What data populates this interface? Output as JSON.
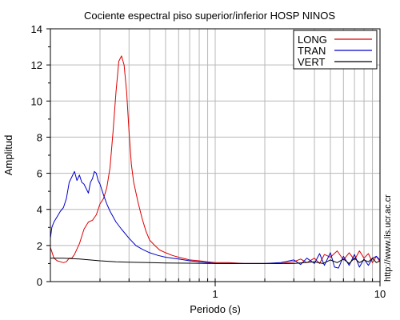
{
  "chart_data": {
    "type": "line",
    "title": "Cociente espectral piso superior/inferior  HOSP NINOS",
    "xlabel": "Periodo (s)",
    "ylabel": "Amplitud",
    "x_scale": "log",
    "xlim": [
      0.1,
      10
    ],
    "ylim": [
      0,
      14
    ],
    "x_tick_labels": [
      "1",
      "10"
    ],
    "x_tick_values": [
      1,
      10
    ],
    "y_ticks": [
      0,
      2,
      4,
      6,
      8,
      10,
      12,
      14
    ],
    "grid": true,
    "legend_position": "top-right",
    "credit": "http://www.lis.ucr.ac.cr",
    "series": [
      {
        "name": "LONG",
        "color": "#dd0000",
        "points": [
          [
            0.1,
            1.9
          ],
          [
            0.105,
            1.3
          ],
          [
            0.11,
            1.15
          ],
          [
            0.115,
            1.1
          ],
          [
            0.12,
            1.05
          ],
          [
            0.125,
            1.1
          ],
          [
            0.13,
            1.3
          ],
          [
            0.135,
            1.3
          ],
          [
            0.14,
            1.5
          ],
          [
            0.15,
            2.1
          ],
          [
            0.16,
            2.9
          ],
          [
            0.17,
            3.3
          ],
          [
            0.18,
            3.4
          ],
          [
            0.19,
            3.7
          ],
          [
            0.2,
            4.3
          ],
          [
            0.21,
            4.6
          ],
          [
            0.22,
            5.2
          ],
          [
            0.23,
            6.3
          ],
          [
            0.24,
            8.3
          ],
          [
            0.25,
            10.5
          ],
          [
            0.26,
            12.2
          ],
          [
            0.27,
            12.5
          ],
          [
            0.28,
            12.0
          ],
          [
            0.29,
            10.5
          ],
          [
            0.3,
            8.3
          ],
          [
            0.31,
            6.5
          ],
          [
            0.32,
            5.5
          ],
          [
            0.34,
            4.4
          ],
          [
            0.36,
            3.5
          ],
          [
            0.38,
            2.8
          ],
          [
            0.4,
            2.3
          ],
          [
            0.43,
            2.0
          ],
          [
            0.46,
            1.75
          ],
          [
            0.5,
            1.6
          ],
          [
            0.55,
            1.45
          ],
          [
            0.6,
            1.35
          ],
          [
            0.7,
            1.2
          ],
          [
            0.8,
            1.15
          ],
          [
            0.9,
            1.1
          ],
          [
            1.0,
            1.05
          ],
          [
            1.2,
            1.05
          ],
          [
            1.5,
            1.0
          ],
          [
            2.0,
            1.0
          ],
          [
            2.5,
            1.0
          ],
          [
            3.0,
            1.1
          ],
          [
            3.3,
            1.25
          ],
          [
            3.6,
            1.05
          ],
          [
            4.0,
            1.3
          ],
          [
            4.3,
            1.0
          ],
          [
            4.6,
            1.5
          ],
          [
            5.0,
            1.35
          ],
          [
            5.5,
            1.7
          ],
          [
            6.0,
            1.2
          ],
          [
            6.5,
            1.6
          ],
          [
            7.0,
            1.2
          ],
          [
            7.5,
            1.7
          ],
          [
            8.0,
            1.3
          ],
          [
            8.5,
            1.55
          ],
          [
            9.0,
            1.05
          ],
          [
            9.5,
            1.4
          ],
          [
            10.0,
            1.1
          ]
        ]
      },
      {
        "name": "TRAN",
        "color": "#0000cc",
        "points": [
          [
            0.1,
            2.4
          ],
          [
            0.102,
            3.0
          ],
          [
            0.105,
            3.3
          ],
          [
            0.11,
            3.6
          ],
          [
            0.115,
            3.9
          ],
          [
            0.12,
            4.1
          ],
          [
            0.125,
            4.6
          ],
          [
            0.13,
            5.5
          ],
          [
            0.135,
            5.8
          ],
          [
            0.14,
            6.1
          ],
          [
            0.145,
            5.6
          ],
          [
            0.15,
            5.9
          ],
          [
            0.155,
            5.5
          ],
          [
            0.16,
            5.4
          ],
          [
            0.17,
            4.9
          ],
          [
            0.175,
            5.5
          ],
          [
            0.18,
            5.7
          ],
          [
            0.185,
            6.1
          ],
          [
            0.19,
            6.0
          ],
          [
            0.195,
            5.6
          ],
          [
            0.2,
            5.4
          ],
          [
            0.21,
            4.8
          ],
          [
            0.22,
            4.3
          ],
          [
            0.23,
            3.9
          ],
          [
            0.25,
            3.3
          ],
          [
            0.27,
            2.9
          ],
          [
            0.3,
            2.4
          ],
          [
            0.33,
            2.0
          ],
          [
            0.36,
            1.8
          ],
          [
            0.4,
            1.6
          ],
          [
            0.45,
            1.45
          ],
          [
            0.5,
            1.35
          ],
          [
            0.55,
            1.3
          ],
          [
            0.6,
            1.25
          ],
          [
            0.7,
            1.15
          ],
          [
            0.8,
            1.1
          ],
          [
            0.9,
            1.05
          ],
          [
            1.0,
            1.0
          ],
          [
            1.5,
            1.0
          ],
          [
            2.0,
            1.0
          ],
          [
            2.5,
            1.05
          ],
          [
            3.0,
            1.2
          ],
          [
            3.3,
            0.95
          ],
          [
            3.6,
            1.3
          ],
          [
            4.0,
            1.0
          ],
          [
            4.3,
            1.55
          ],
          [
            4.6,
            0.9
          ],
          [
            5.0,
            1.6
          ],
          [
            5.3,
            0.8
          ],
          [
            5.6,
            0.75
          ],
          [
            6.0,
            1.4
          ],
          [
            6.5,
            0.9
          ],
          [
            7.0,
            1.5
          ],
          [
            7.5,
            0.8
          ],
          [
            8.0,
            1.25
          ],
          [
            8.5,
            0.9
          ],
          [
            9.0,
            1.3
          ],
          [
            9.5,
            1.4
          ],
          [
            10.0,
            1.2
          ]
        ]
      },
      {
        "name": "VERT",
        "color": "#000000",
        "points": [
          [
            0.1,
            1.3
          ],
          [
            0.12,
            1.3
          ],
          [
            0.15,
            1.25
          ],
          [
            0.2,
            1.15
          ],
          [
            0.25,
            1.1
          ],
          [
            0.3,
            1.07
          ],
          [
            0.4,
            1.05
          ],
          [
            0.5,
            1.03
          ],
          [
            0.7,
            1.02
          ],
          [
            1.0,
            1.0
          ],
          [
            1.5,
            1.0
          ],
          [
            2.0,
            1.0
          ],
          [
            2.5,
            1.0
          ],
          [
            3.0,
            1.0
          ],
          [
            3.5,
            1.05
          ],
          [
            4.0,
            1.1
          ],
          [
            4.5,
            1.0
          ],
          [
            5.0,
            1.2
          ],
          [
            5.5,
            1.05
          ],
          [
            6.0,
            1.25
          ],
          [
            6.5,
            1.0
          ],
          [
            7.0,
            1.3
          ],
          [
            7.5,
            1.05
          ],
          [
            8.0,
            1.2
          ],
          [
            8.5,
            1.1
          ],
          [
            9.0,
            1.3
          ],
          [
            9.5,
            1.05
          ],
          [
            10.0,
            1.15
          ]
        ]
      }
    ]
  }
}
